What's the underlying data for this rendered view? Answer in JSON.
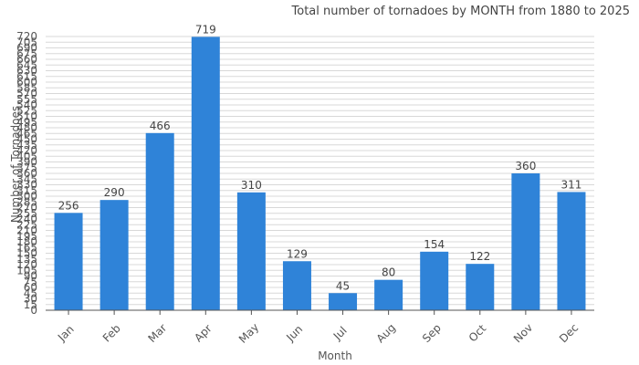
{
  "chart_data": {
    "type": "bar",
    "title": "Total number of tornadoes by MONTH from 1880 to 2025",
    "xlabel": "Month",
    "ylabel": "Number of Tornadoes",
    "categories": [
      "Jan",
      "Feb",
      "Mar",
      "Apr",
      "May",
      "Jun",
      "Jul",
      "Aug",
      "Sep",
      "Oct",
      "Nov",
      "Dec"
    ],
    "values": [
      256,
      290,
      466,
      719,
      310,
      129,
      45,
      80,
      154,
      122,
      360,
      311
    ],
    "ylim": [
      0,
      720
    ],
    "ytick_step": 15,
    "grid": true,
    "bar_color": "#2f83d8",
    "grid_color": "#d8d8d8"
  }
}
